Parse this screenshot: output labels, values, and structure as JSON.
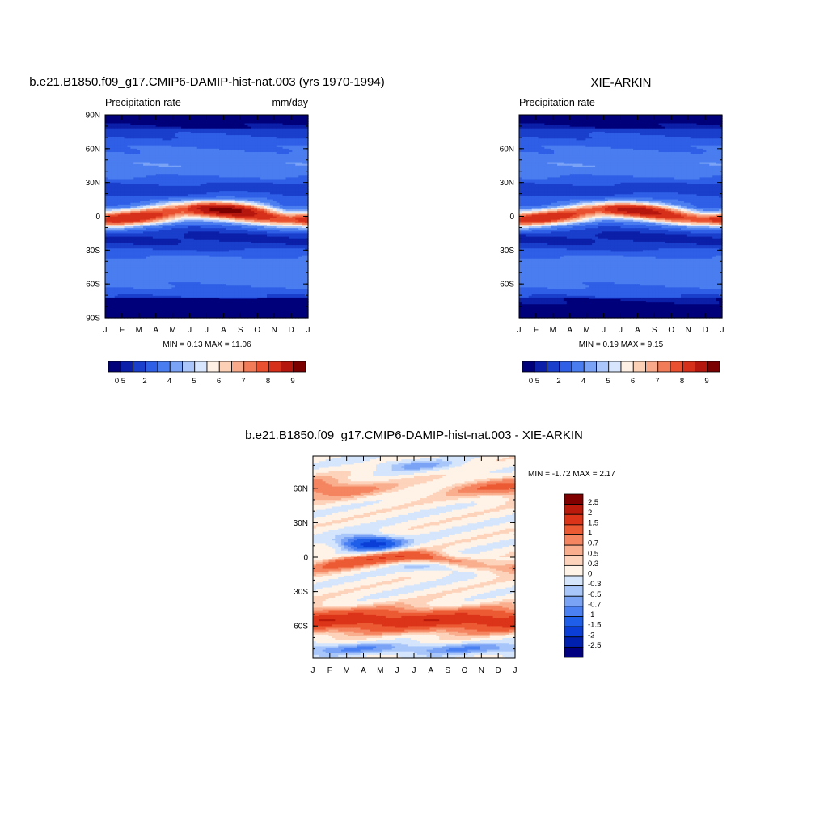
{
  "figure": {
    "panels": [
      {
        "id": "model",
        "title": "b.e21.B1850.f09_g17.CMIP6-DAMIP-hist-nat.003 (yrs 1970-1994)",
        "left_label": "Precipitation rate",
        "right_label": "mm/day",
        "stats": "MIN =   0.13 MAX =  11.06",
        "y_ticks": [
          "90N",
          "60N",
          "30N",
          "0",
          "30S",
          "60S",
          "90S"
        ],
        "x_ticks": [
          "J",
          "F",
          "M",
          "A",
          "M",
          "J",
          "J",
          "A",
          "S",
          "O",
          "N",
          "D",
          "J"
        ],
        "colorbar_labels": [
          "0.5",
          "2",
          "4",
          "5",
          "6",
          "7",
          "8",
          "9"
        ]
      },
      {
        "id": "obs",
        "title": "XIE-ARKIN",
        "left_label": "Precipitation rate",
        "right_label": "",
        "stats": "MIN =   0.19 MAX =   9.15",
        "y_ticks": [
          "60N",
          "30N",
          "0",
          "30S",
          "60S"
        ],
        "x_ticks": [
          "J",
          "F",
          "M",
          "A",
          "M",
          "J",
          "J",
          "A",
          "S",
          "O",
          "N",
          "D",
          "J"
        ],
        "colorbar_labels": [
          "0.5",
          "2",
          "4",
          "5",
          "6",
          "7",
          "8",
          "9"
        ]
      },
      {
        "id": "diff",
        "title": "b.e21.B1850.f09_g17.CMIP6-DAMIP-hist-nat.003 - XIE-ARKIN",
        "stats": "MIN =  -1.72 MAX =   2.17",
        "y_ticks": [
          "60N",
          "30N",
          "0",
          "30S",
          "60S"
        ],
        "x_ticks": [
          "J",
          "F",
          "M",
          "A",
          "M",
          "J",
          "J",
          "A",
          "S",
          "O",
          "N",
          "D",
          "J"
        ],
        "colorbar_labels": [
          "2.5",
          "2",
          "1.5",
          "1",
          "0.7",
          "0.5",
          "0.3",
          "0",
          "-0.3",
          "-0.5",
          "-0.7",
          "-1",
          "-1.5",
          "-2",
          "-2.5"
        ]
      }
    ]
  },
  "chart_data": [
    {
      "type": "heatmap",
      "title": "b.e21.B1850.f09_g17.CMIP6-DAMIP-hist-nat.003 (yrs 1970-1994)",
      "variable": "Precipitation rate",
      "units": "mm/day",
      "x_axis": "month",
      "y_axis": "latitude",
      "ylim": [
        -90,
        90
      ],
      "min": 0.13,
      "max": 11.06,
      "levels": [
        0.5,
        1,
        2,
        3,
        4,
        4.5,
        5,
        5.5,
        6,
        6.5,
        7,
        7.5,
        8,
        9,
        10
      ],
      "colors": [
        "#00007a",
        "#0b1fa8",
        "#1a3fcc",
        "#2f5fe6",
        "#4a7df0",
        "#7aa2f5",
        "#aac6fb",
        "#d7e6fd",
        "#fff0e6",
        "#fcd0b5",
        "#f8a98a",
        "#f27c58",
        "#e9502f",
        "#d6301b",
        "#b5160e",
        "#7b0000"
      ]
    },
    {
      "type": "heatmap",
      "title": "XIE-ARKIN",
      "variable": "Precipitation rate",
      "x_axis": "month",
      "y_axis": "latitude",
      "min": 0.19,
      "max": 9.15,
      "levels": [
        0.5,
        1,
        2,
        3,
        4,
        4.5,
        5,
        5.5,
        6,
        6.5,
        7,
        7.5,
        8,
        9,
        10
      ],
      "colors": [
        "#00007a",
        "#0b1fa8",
        "#1a3fcc",
        "#2f5fe6",
        "#4a7df0",
        "#7aa2f5",
        "#aac6fb",
        "#d7e6fd",
        "#fff0e6",
        "#fcd0b5",
        "#f8a98a",
        "#f27c58",
        "#e9502f",
        "#d6301b",
        "#b5160e",
        "#7b0000"
      ]
    },
    {
      "type": "heatmap",
      "title": "b.e21.B1850.f09_g17.CMIP6-DAMIP-hist-nat.003 - XIE-ARKIN",
      "x_axis": "month",
      "y_axis": "latitude",
      "min": -1.72,
      "max": 2.17,
      "levels": [
        -2.5,
        -2,
        -1.5,
        -1,
        -0.7,
        -0.5,
        -0.3,
        0,
        0.3,
        0.5,
        0.7,
        1,
        1.5,
        2,
        2.5
      ],
      "colors": [
        "#000080",
        "#0020b0",
        "#0a3ed6",
        "#1f5ee8",
        "#4a80f2",
        "#7aa3f6",
        "#a8c6fa",
        "#d4e5fc",
        "#fff2e6",
        "#fdd3bb",
        "#f9ae8e",
        "#f48560",
        "#ec5a34",
        "#dc3418",
        "#b91a0b",
        "#800000"
      ]
    }
  ]
}
